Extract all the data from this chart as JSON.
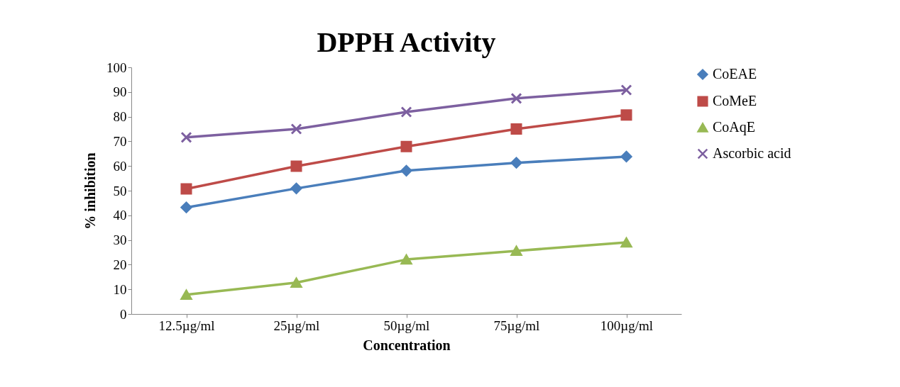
{
  "chart_data": {
    "type": "line",
    "title": "DPPH Activity",
    "xlabel": "Concentration",
    "ylabel": "% inhibition",
    "categories": [
      "12.5µg/ml",
      "25µg/ml",
      "50µg/ml",
      "75µg/ml",
      "100µg/ml"
    ],
    "series": [
      {
        "name": "CoEAE",
        "color": "#4a7ebb",
        "marker": "diamond",
        "values": [
          43.2,
          50.9,
          58.1,
          61.3,
          63.8
        ]
      },
      {
        "name": "CoMeE",
        "color": "#be4b48",
        "marker": "square",
        "values": [
          50.7,
          59.9,
          67.9,
          75.0,
          80.7
        ]
      },
      {
        "name": "CoAqE",
        "color": "#98b954",
        "marker": "triangle",
        "values": [
          7.8,
          12.7,
          22.1,
          25.6,
          29.0
        ]
      },
      {
        "name": "Ascorbic acid",
        "color": "#7d60a0",
        "marker": "cross",
        "values": [
          71.6,
          75.0,
          81.9,
          87.4,
          90.8
        ]
      }
    ],
    "ylim": [
      0,
      100
    ],
    "yticks": [
      0,
      10,
      20,
      30,
      40,
      50,
      60,
      70,
      80,
      90,
      100
    ],
    "grid": false,
    "legend": "right",
    "line_style": "solid"
  }
}
